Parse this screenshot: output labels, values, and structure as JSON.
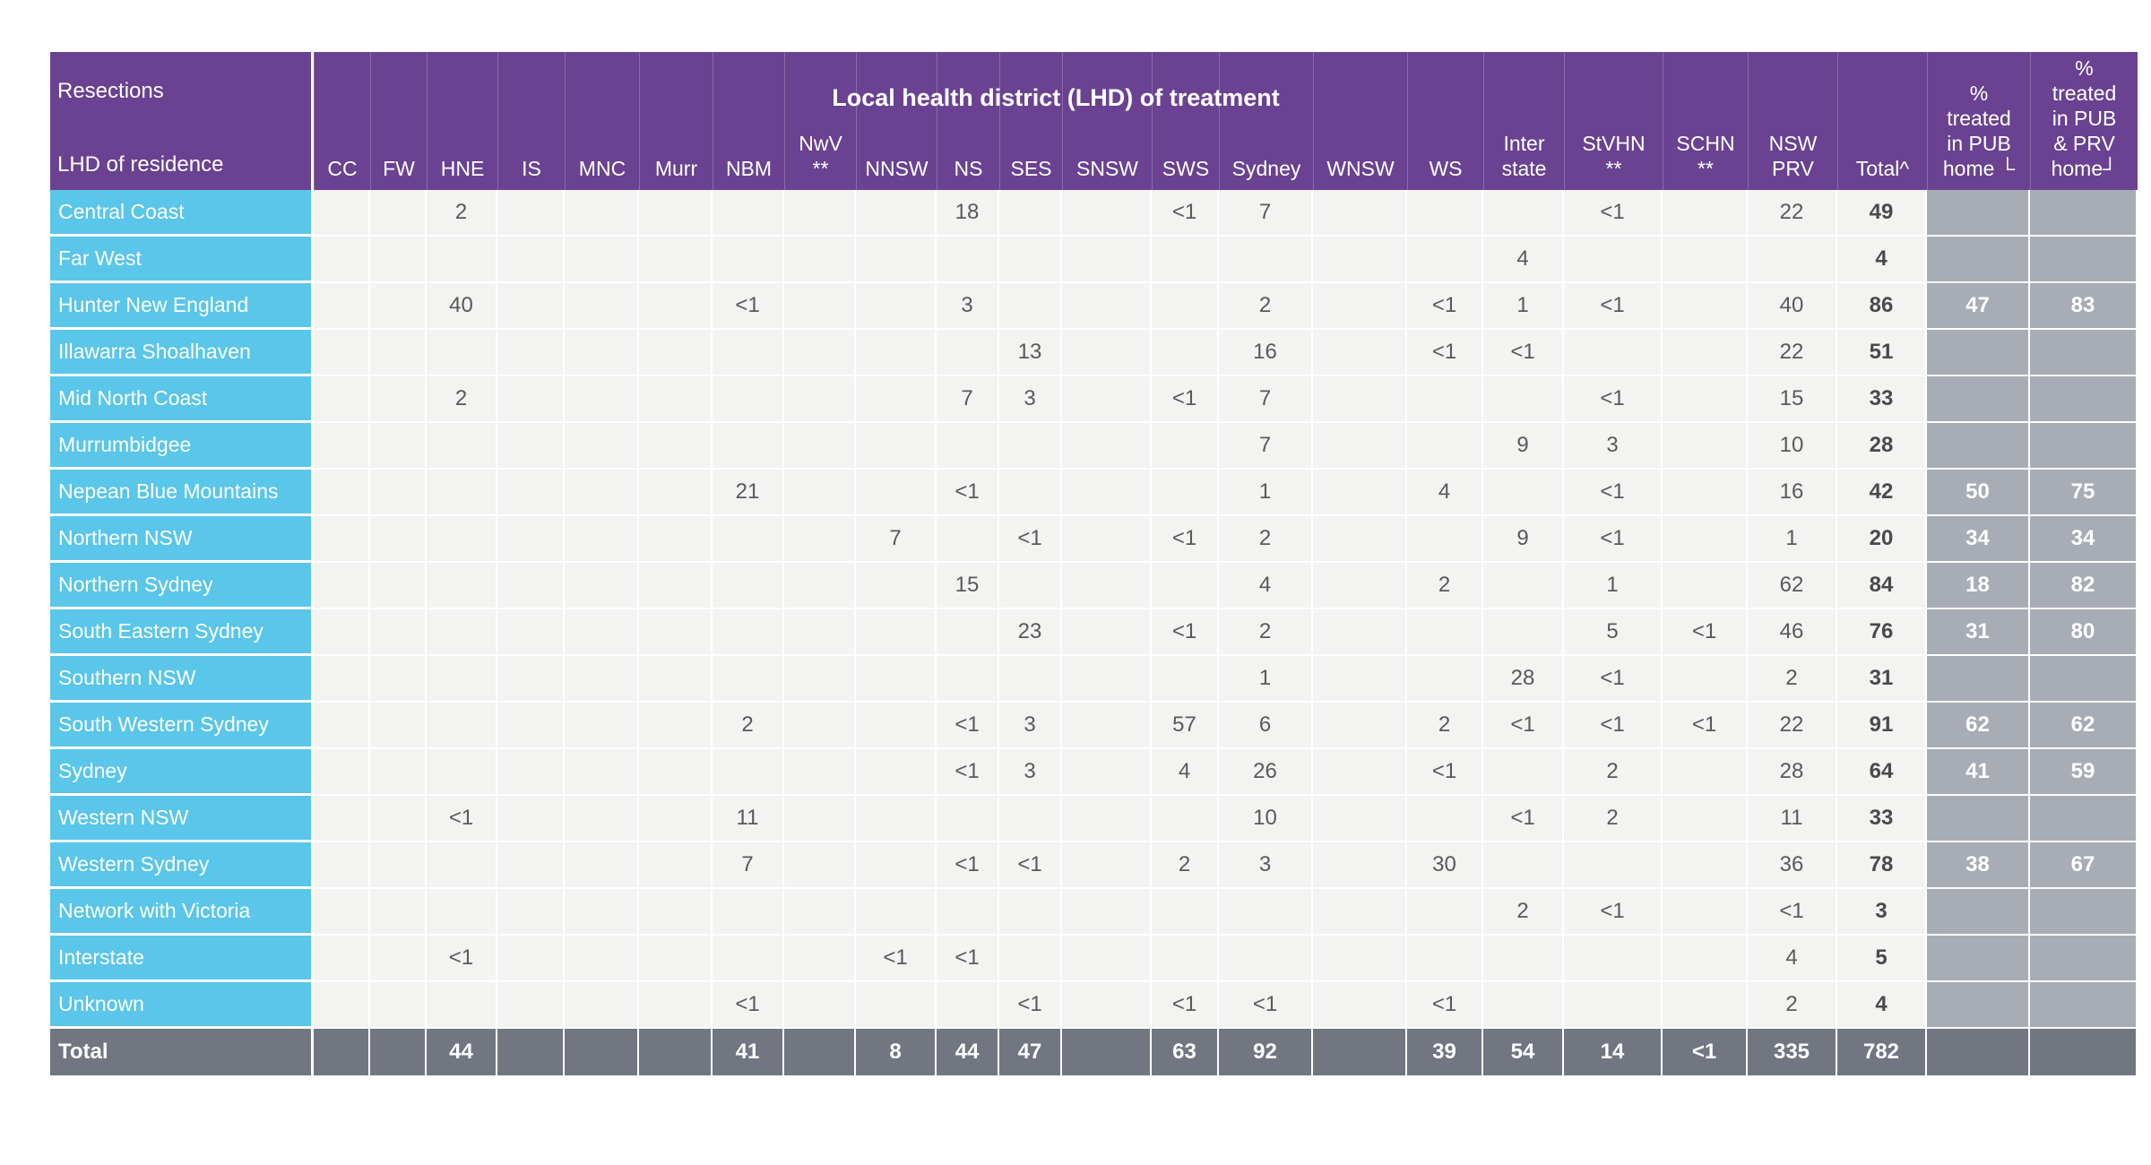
{
  "chart_data": {
    "type": "table",
    "title": "Resections",
    "row_dimension_label": "LHD of residence",
    "column_group_label": "Local health district (LHD) of treatment",
    "columns": [
      "CC",
      "FW",
      "HNE",
      "IS",
      "MNC",
      "Murr",
      "NBM",
      "NwV\n**",
      "NNSW",
      "NS",
      "SES",
      "SNSW",
      "SWS",
      "Sydney",
      "WNSW",
      "WS",
      "Inter\nstate",
      "StVHN\n**",
      "SCHN\n**",
      "NSW\nPRV",
      "Total^",
      "%\ntreated\nin PUB\nhome └",
      "%\ntreated\nin PUB\n& PRV\nhome┘"
    ],
    "rows": [
      {
        "label": "Central Coast",
        "values": [
          "",
          "",
          "2",
          "",
          "",
          "",
          "",
          "",
          "",
          "18",
          "",
          "",
          "<1",
          "7",
          "",
          "",
          "",
          "<1",
          "",
          "22",
          "49",
          "",
          ""
        ]
      },
      {
        "label": "Far West",
        "values": [
          "",
          "",
          "",
          "",
          "",
          "",
          "",
          "",
          "",
          "",
          "",
          "",
          "",
          "",
          "",
          "",
          "4",
          "",
          "",
          "",
          "4",
          "",
          ""
        ]
      },
      {
        "label": "Hunter New England",
        "values": [
          "",
          "",
          "40",
          "",
          "",
          "",
          "<1",
          "",
          "",
          "3",
          "",
          "",
          "",
          "2",
          "",
          "<1",
          "1",
          "<1",
          "",
          "40",
          "86",
          "47",
          "83"
        ]
      },
      {
        "label": "Illawarra Shoalhaven",
        "values": [
          "",
          "",
          "",
          "",
          "",
          "",
          "",
          "",
          "",
          "",
          "13",
          "",
          "",
          "16",
          "",
          "<1",
          "<1",
          "",
          "",
          "22",
          "51",
          "",
          ""
        ]
      },
      {
        "label": "Mid North Coast",
        "values": [
          "",
          "",
          "2",
          "",
          "",
          "",
          "",
          "",
          "",
          "7",
          "3",
          "",
          "<1",
          "7",
          "",
          "",
          "",
          "<1",
          "",
          "15",
          "33",
          "",
          ""
        ]
      },
      {
        "label": "Murrumbidgee",
        "values": [
          "",
          "",
          "",
          "",
          "",
          "",
          "",
          "",
          "",
          "",
          "",
          "",
          "",
          "7",
          "",
          "",
          "9",
          "3",
          "",
          "10",
          "28",
          "",
          ""
        ]
      },
      {
        "label": "Nepean Blue Mountains",
        "values": [
          "",
          "",
          "",
          "",
          "",
          "",
          "21",
          "",
          "",
          "<1",
          "",
          "",
          "",
          "1",
          "",
          "4",
          "",
          "<1",
          "",
          "16",
          "42",
          "50",
          "75"
        ]
      },
      {
        "label": "Northern NSW",
        "values": [
          "",
          "",
          "",
          "",
          "",
          "",
          "",
          "",
          "7",
          "",
          "<1",
          "",
          "<1",
          "2",
          "",
          "",
          "9",
          "<1",
          "",
          "1",
          "20",
          "34",
          "34"
        ]
      },
      {
        "label": "Northern Sydney",
        "values": [
          "",
          "",
          "",
          "",
          "",
          "",
          "",
          "",
          "",
          "15",
          "",
          "",
          "",
          "4",
          "",
          "2",
          "",
          "1",
          "",
          "62",
          "84",
          "18",
          "82"
        ]
      },
      {
        "label": "South Eastern Sydney",
        "values": [
          "",
          "",
          "",
          "",
          "",
          "",
          "",
          "",
          "",
          "",
          "23",
          "",
          "<1",
          "2",
          "",
          "",
          "",
          "5",
          "<1",
          "46",
          "76",
          "31",
          "80"
        ]
      },
      {
        "label": "Southern NSW",
        "values": [
          "",
          "",
          "",
          "",
          "",
          "",
          "",
          "",
          "",
          "",
          "",
          "",
          "",
          "1",
          "",
          "",
          "28",
          "<1",
          "",
          "2",
          "31",
          "",
          ""
        ]
      },
      {
        "label": "South Western Sydney",
        "values": [
          "",
          "",
          "",
          "",
          "",
          "",
          "2",
          "",
          "",
          "<1",
          "3",
          "",
          "57",
          "6",
          "",
          "2",
          "<1",
          "<1",
          "<1",
          "22",
          "91",
          "62",
          "62"
        ]
      },
      {
        "label": "Sydney",
        "values": [
          "",
          "",
          "",
          "",
          "",
          "",
          "",
          "",
          "",
          "<1",
          "3",
          "",
          "4",
          "26",
          "",
          "<1",
          "",
          "2",
          "",
          "28",
          "64",
          "41",
          "59"
        ]
      },
      {
        "label": "Western NSW",
        "values": [
          "",
          "",
          "<1",
          "",
          "",
          "",
          "11",
          "",
          "",
          "",
          "",
          "",
          "",
          "10",
          "",
          "",
          "<1",
          "2",
          "",
          "11",
          "33",
          "",
          ""
        ]
      },
      {
        "label": "Western Sydney",
        "values": [
          "",
          "",
          "",
          "",
          "",
          "",
          "7",
          "",
          "",
          "<1",
          "<1",
          "",
          "2",
          "3",
          "",
          "30",
          "",
          "",
          "",
          "36",
          "78",
          "38",
          "67"
        ]
      },
      {
        "label": "Network with Victoria",
        "values": [
          "",
          "",
          "",
          "",
          "",
          "",
          "",
          "",
          "",
          "",
          "",
          "",
          "",
          "",
          "",
          "",
          "2",
          "<1",
          "",
          "<1",
          "3",
          "",
          ""
        ]
      },
      {
        "label": "Interstate",
        "values": [
          "",
          "",
          "<1",
          "",
          "",
          "",
          "",
          "",
          "<1",
          "<1",
          "",
          "",
          "",
          "",
          "",
          "",
          "",
          "",
          "",
          "4",
          "5",
          "",
          ""
        ]
      },
      {
        "label": "Unknown",
        "values": [
          "",
          "",
          "",
          "",
          "",
          "",
          "<1",
          "",
          "",
          "",
          "<1",
          "",
          "<1",
          "<1",
          "",
          "<1",
          "",
          "",
          "",
          "2",
          "4",
          "",
          ""
        ]
      }
    ],
    "total_row": {
      "label": "Total",
      "values": [
        "",
        "",
        "44",
        "",
        "",
        "",
        "41",
        "",
        "8",
        "44",
        "47",
        "",
        "63",
        "92",
        "",
        "39",
        "54",
        "14",
        "<1",
        "335",
        "782",
        "",
        ""
      ]
    }
  },
  "colors": {
    "header_purple": "#6A4291",
    "row_label_cyan": "#5AC6E9",
    "percent_grey": "#A8ACB5",
    "total_row_grey": "#717681",
    "cell_background": "#F3F3F1",
    "value_text": "#595959"
  }
}
